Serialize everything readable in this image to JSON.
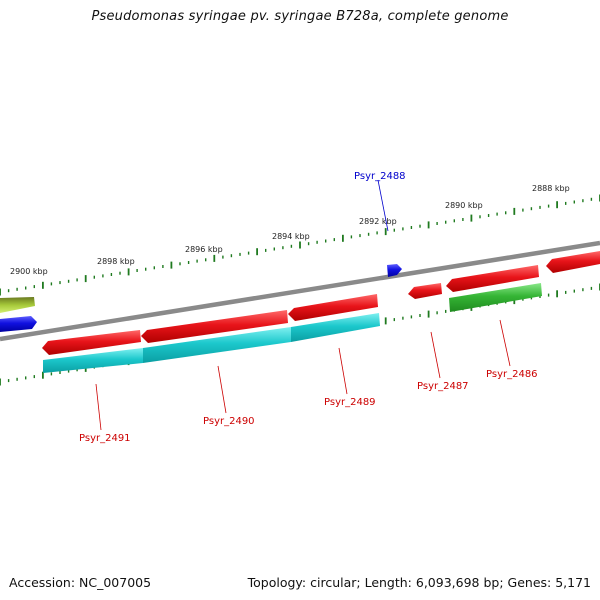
{
  "title": "Pseudomonas syringae pv. syringae B728a, complete genome",
  "accession": "Accession: NC_007005",
  "summary": "Topology: circular; Length: 6,093,698 bp; Genes: 5,171",
  "colors": {
    "backbone": "#8a8a8a",
    "ticks": "#1f7a1f",
    "red": "#e8141a",
    "cyan": "#1cc8cc",
    "green": "#35b535",
    "blue": "#1010e0",
    "olive": "#8fa828",
    "label_red": "#cc0000",
    "label_blue": "#0000cc"
  },
  "scale_labels": [
    "2900 kbp",
    "2898 kbp",
    "2896 kbp",
    "2894 kbp",
    "2892 kbp",
    "2890 kbp",
    "2888 kbp"
  ],
  "gene_labels": {
    "g2488": "Psyr_2488",
    "g2491": "Psyr_2491",
    "g2490": "Psyr_2490",
    "g2489": "Psyr_2489",
    "g2487": "Psyr_2487",
    "g2486": "Psyr_2486"
  }
}
